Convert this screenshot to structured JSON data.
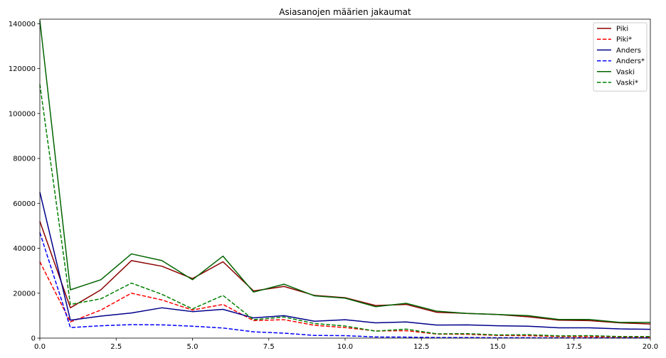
{
  "chart_data": {
    "type": "line",
    "title": "Asiasanojen määrien jakaumat",
    "xlabel": "",
    "ylabel": "",
    "xlim": [
      0,
      20
    ],
    "ylim": [
      0,
      142000
    ],
    "x_ticks": [
      "0.0",
      "2.5",
      "5.0",
      "7.5",
      "10.0",
      "12.5",
      "15.0",
      "17.5",
      "20.0"
    ],
    "y_ticks": [
      "0",
      "20000",
      "40000",
      "60000",
      "80000",
      "100000",
      "120000",
      "140000"
    ],
    "grid": false,
    "legend_position": "top-right",
    "x": [
      0,
      1,
      2,
      3,
      4,
      5,
      6,
      7,
      8,
      9,
      10,
      11,
      12,
      13,
      14,
      15,
      16,
      17,
      18,
      19,
      20
    ],
    "series": [
      {
        "name": "Piki",
        "color": "#8b0000",
        "dashed": false,
        "values": [
          52000,
          13500,
          21500,
          34500,
          32000,
          26500,
          34000,
          21000,
          23000,
          19000,
          18000,
          14500,
          15000,
          11500,
          11000,
          10500,
          9500,
          8000,
          7800,
          6800,
          6300
        ]
      },
      {
        "name": "Piki*",
        "color": "#ff0000",
        "dashed": true,
        "values": [
          34000,
          7200,
          12500,
          20000,
          17000,
          12500,
          15000,
          7800,
          8200,
          5700,
          4700,
          3200,
          3300,
          1800,
          1700,
          1200,
          1100,
          700,
          600,
          450,
          400
        ]
      },
      {
        "name": "Anders",
        "color": "#00008b",
        "dashed": false,
        "values": [
          65000,
          8000,
          9800,
          11200,
          13500,
          11800,
          12800,
          9000,
          10000,
          7500,
          8200,
          6800,
          7200,
          5800,
          5900,
          5500,
          5300,
          4600,
          4600,
          4100,
          3900
        ]
      },
      {
        "name": "Anders*",
        "color": "#0000ff",
        "dashed": true,
        "values": [
          47000,
          4700,
          5500,
          6000,
          5900,
          5300,
          4500,
          2800,
          2200,
          1200,
          1100,
          500,
          450,
          250,
          250,
          150,
          150,
          100,
          80,
          60,
          60
        ]
      },
      {
        "name": "Vaski",
        "color": "#006400",
        "dashed": false,
        "values": [
          141500,
          21500,
          26000,
          37500,
          34500,
          26000,
          36500,
          20500,
          24000,
          18800,
          17800,
          14000,
          15500,
          12000,
          11000,
          10500,
          10000,
          8300,
          8300,
          7000,
          7000
        ]
      },
      {
        "name": "Vaski*",
        "color": "#008000",
        "dashed": true,
        "values": [
          113000,
          15000,
          17500,
          24500,
          19500,
          13000,
          19000,
          8200,
          9400,
          6500,
          5400,
          3100,
          4000,
          1900,
          2000,
          1400,
          1500,
          1000,
          1100,
          700,
          700
        ]
      }
    ]
  }
}
